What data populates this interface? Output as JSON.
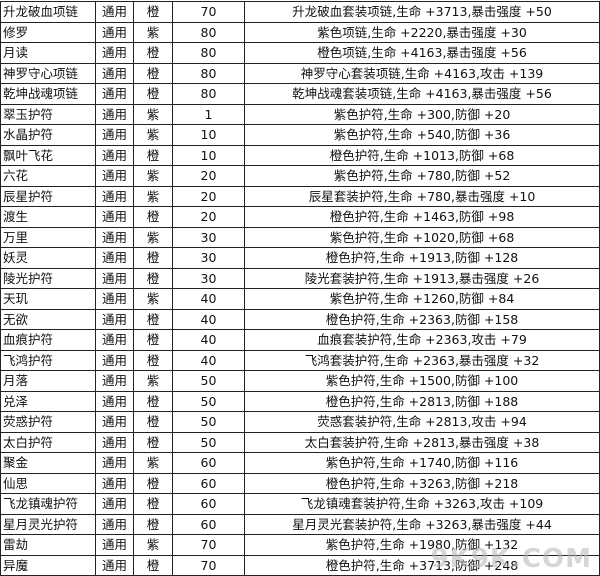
{
  "table": {
    "rows": [
      [
        "升龙破血项链",
        "通用",
        "橙",
        "70",
        "升龙破血套装项链,生命 +3713,暴击强度 +50"
      ],
      [
        "修罗",
        "通用",
        "紫",
        "80",
        "紫色项链,生命 +2220,暴击强度 +30"
      ],
      [
        "月读",
        "通用",
        "橙",
        "80",
        "橙色项链,生命 +4163,暴击强度 +56"
      ],
      [
        "神罗守心项链",
        "通用",
        "橙",
        "80",
        "神罗守心套装项链,生命 +4163,攻击 +139"
      ],
      [
        "乾坤战魂项链",
        "通用",
        "橙",
        "80",
        "乾坤战魂套装项链,生命 +4163,暴击强度 +56"
      ],
      [
        "翠玉护符",
        "通用",
        "紫",
        "1",
        "紫色护符,生命 +300,防御 +20"
      ],
      [
        "水晶护符",
        "通用",
        "紫",
        "10",
        "紫色护符,生命 +540,防御 +36"
      ],
      [
        "飘叶飞花",
        "通用",
        "橙",
        "10",
        "橙色护符,生命 +1013,防御 +68"
      ],
      [
        "六花",
        "通用",
        "紫",
        "20",
        "紫色护符,生命 +780,防御 +52"
      ],
      [
        "辰星护符",
        "通用",
        "紫",
        "20",
        "辰星套装护符,生命 +780,暴击强度 +10"
      ],
      [
        "渡生",
        "通用",
        "橙",
        "20",
        "橙色护符,生命 +1463,防御 +98"
      ],
      [
        "万里",
        "通用",
        "紫",
        "30",
        "紫色护符,生命 +1020,防御 +68"
      ],
      [
        "妖灵",
        "通用",
        "橙",
        "30",
        "橙色护符,生命 +1913,防御 +128"
      ],
      [
        "陵光护符",
        "通用",
        "橙",
        "30",
        "陵光套装护符,生命 +1913,暴击强度 +26"
      ],
      [
        "天玑",
        "通用",
        "紫",
        "40",
        "紫色护符,生命 +1260,防御 +84"
      ],
      [
        "无欲",
        "通用",
        "橙",
        "40",
        "橙色护符,生命 +2363,防御 +158"
      ],
      [
        "血痕护符",
        "通用",
        "橙",
        "40",
        "血痕套装护符,生命 +2363,攻击 +79"
      ],
      [
        "飞鸿护符",
        "通用",
        "橙",
        "40",
        "飞鸿套装护符,生命 +2363,暴击强度 +32"
      ],
      [
        "月落",
        "通用",
        "紫",
        "50",
        "紫色护符,生命 +1500,防御 +100"
      ],
      [
        "兑泽",
        "通用",
        "橙",
        "50",
        "橙色护符,生命 +2813,防御 +188"
      ],
      [
        "荧惑护符",
        "通用",
        "橙",
        "50",
        "荧惑套装护符,生命 +2813,攻击 +94"
      ],
      [
        "太白护符",
        "通用",
        "橙",
        "50",
        "太白套装护符,生命 +2813,暴击强度 +38"
      ],
      [
        "聚金",
        "通用",
        "紫",
        "60",
        "紫色护符,生命 +1740,防御 +116"
      ],
      [
        "仙思",
        "通用",
        "橙",
        "60",
        "橙色护符,生命 +3263,防御 +218"
      ],
      [
        "飞龙镇魂护符",
        "通用",
        "橙",
        "60",
        "飞龙镇魂套装护符,生命 +3263,攻击 +109"
      ],
      [
        "星月灵光护符",
        "通用",
        "橙",
        "60",
        "星月灵光套装护符,生命 +3263,暴击强度 +44"
      ],
      [
        "雷劫",
        "通用",
        "紫",
        "70",
        "紫色护符,生命 +1980,防御 +132"
      ],
      [
        "异魔",
        "通用",
        "橙",
        "70",
        "橙色护符,生命 +3713,防御 +248"
      ]
    ]
  },
  "watermark": "9K9K.COM"
}
